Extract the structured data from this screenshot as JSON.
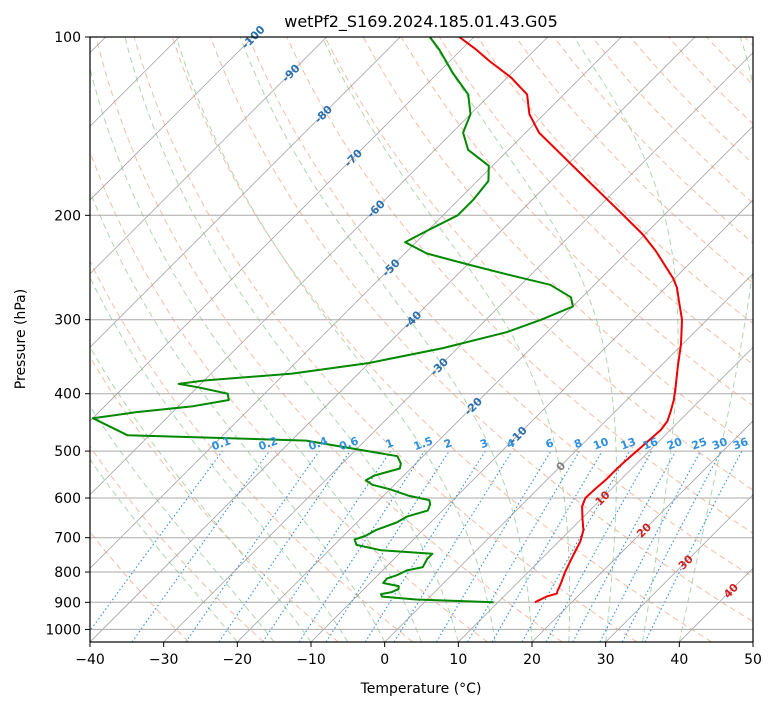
{
  "chart_data": {
    "type": "line",
    "title": "wetPf2_S169.2024.185.01.43.G05",
    "xlabel": "Temperature (°C)",
    "ylabel": "Pressure (hPa)",
    "xlim": [
      -40,
      50
    ],
    "ylim": [
      1050,
      100
    ],
    "y_scale": "log",
    "skew_deg": 45,
    "grid": true,
    "x_ticks": [
      -40,
      -30,
      -20,
      -10,
      0,
      10,
      20,
      30,
      40,
      50
    ],
    "y_ticks": [
      1000,
      900,
      800,
      700,
      600,
      500,
      400,
      300,
      200,
      100
    ],
    "series": [
      {
        "color": "#ee0000",
        "points": [
          [
            900,
            15.0
          ],
          [
            880,
            15.8
          ],
          [
            870,
            16.8
          ],
          [
            860,
            16.5
          ],
          [
            850,
            16.3
          ],
          [
            830,
            15.8
          ],
          [
            800,
            15.0
          ],
          [
            770,
            14.3
          ],
          [
            740,
            13.6
          ],
          [
            710,
            12.9
          ],
          [
            680,
            11.8
          ],
          [
            650,
            10.1
          ],
          [
            620,
            8.4
          ],
          [
            600,
            7.7
          ],
          [
            580,
            7.8
          ],
          [
            560,
            8.0
          ],
          [
            540,
            8.0
          ],
          [
            520,
            8.1
          ],
          [
            500,
            8.3
          ],
          [
            480,
            8.5
          ],
          [
            460,
            8.7
          ],
          [
            445,
            8.4
          ],
          [
            430,
            7.6
          ],
          [
            410,
            6.4
          ],
          [
            390,
            4.9
          ],
          [
            360,
            2.4
          ],
          [
            330,
            -0.2
          ],
          [
            300,
            -3.4
          ],
          [
            280,
            -6.2
          ],
          [
            265,
            -8.4
          ],
          [
            255,
            -10.3
          ],
          [
            245,
            -12.6
          ],
          [
            230,
            -16.2
          ],
          [
            215,
            -20.4
          ],
          [
            200,
            -25.5
          ],
          [
            185,
            -31.0
          ],
          [
            170,
            -37.0
          ],
          [
            155,
            -43.5
          ],
          [
            145,
            -48.2
          ],
          [
            135,
            -52.0
          ],
          [
            125,
            -55.0
          ],
          [
            117,
            -59.5
          ],
          [
            110,
            -64.5
          ],
          [
            105,
            -68.0
          ],
          [
            100,
            -72.0
          ]
        ]
      },
      {
        "color": "#008800",
        "points": [
          [
            900,
            9.4
          ],
          [
            895,
            4.0
          ],
          [
            890,
            -1.5
          ],
          [
            880,
            -6.5
          ],
          [
            872,
            -7.0
          ],
          [
            865,
            -5.8
          ],
          [
            855,
            -5.3
          ],
          [
            845,
            -5.7
          ],
          [
            835,
            -8.2
          ],
          [
            820,
            -8.3
          ],
          [
            810,
            -7.4
          ],
          [
            795,
            -6.7
          ],
          [
            785,
            -5.0
          ],
          [
            760,
            -5.5
          ],
          [
            745,
            -5.5
          ],
          [
            735,
            -13.0
          ],
          [
            720,
            -17.0
          ],
          [
            705,
            -18.0
          ],
          [
            695,
            -17.0
          ],
          [
            680,
            -16.4
          ],
          [
            660,
            -14.6
          ],
          [
            645,
            -14.0
          ],
          [
            630,
            -12.0
          ],
          [
            615,
            -12.5
          ],
          [
            605,
            -13.2
          ],
          [
            595,
            -16.5
          ],
          [
            580,
            -20.0
          ],
          [
            570,
            -23.0
          ],
          [
            560,
            -24.5
          ],
          [
            550,
            -24.0
          ],
          [
            535,
            -21.5
          ],
          [
            525,
            -22.0
          ],
          [
            510,
            -23.5
          ],
          [
            480,
            -38.0
          ],
          [
            470,
            -63.0
          ],
          [
            440,
            -70.0
          ],
          [
            430,
            -65.0
          ],
          [
            420,
            -58.0
          ],
          [
            410,
            -54.0
          ],
          [
            400,
            -55.0
          ],
          [
            390,
            -60.0
          ],
          [
            385,
            -63.0
          ],
          [
            380,
            -60.0
          ],
          [
            370,
            -49.0
          ],
          [
            355,
            -40.0
          ],
          [
            335,
            -32.0
          ],
          [
            315,
            -25.5
          ],
          [
            300,
            -22.5
          ],
          [
            285,
            -20.0
          ],
          [
            275,
            -21.5
          ],
          [
            262,
            -26.0
          ],
          [
            252,
            -33.0
          ],
          [
            242,
            -40.0
          ],
          [
            232,
            -47.0
          ],
          [
            222,
            -51.5
          ],
          [
            212,
            -50.0
          ],
          [
            200,
            -48.0
          ],
          [
            188,
            -48.0
          ],
          [
            175,
            -48.5
          ],
          [
            165,
            -50.5
          ],
          [
            155,
            -55.5
          ],
          [
            145,
            -58.5
          ],
          [
            135,
            -60.0
          ],
          [
            125,
            -63.0
          ],
          [
            115,
            -68.0
          ],
          [
            105,
            -73.0
          ],
          [
            100,
            -76.0
          ]
        ]
      }
    ],
    "dry_adiabat_labels": [
      "-100",
      "-90",
      "-80",
      "-70",
      "-60",
      "-50",
      "-40",
      "-30",
      "-20",
      "-10",
      "0",
      "10",
      "20",
      "30",
      "40"
    ],
    "mixing_ratio_labels": [
      "0.1",
      "0.2",
      "0.4",
      "0.6",
      "1",
      "1.5",
      "2",
      "3",
      "4",
      "6",
      "8",
      "10",
      "13",
      "16",
      "20",
      "25",
      "30",
      "36"
    ],
    "colors": {
      "dry_adiabat": "#f4a582",
      "moist_adiabat": "#9ed09e",
      "mixing_ratio": "#2e8fe0",
      "isotherm": "#999999",
      "dry_adiabat_label_cold": "#2a6fb0",
      "dry_adiabat_label_warm": "#d02020"
    }
  }
}
